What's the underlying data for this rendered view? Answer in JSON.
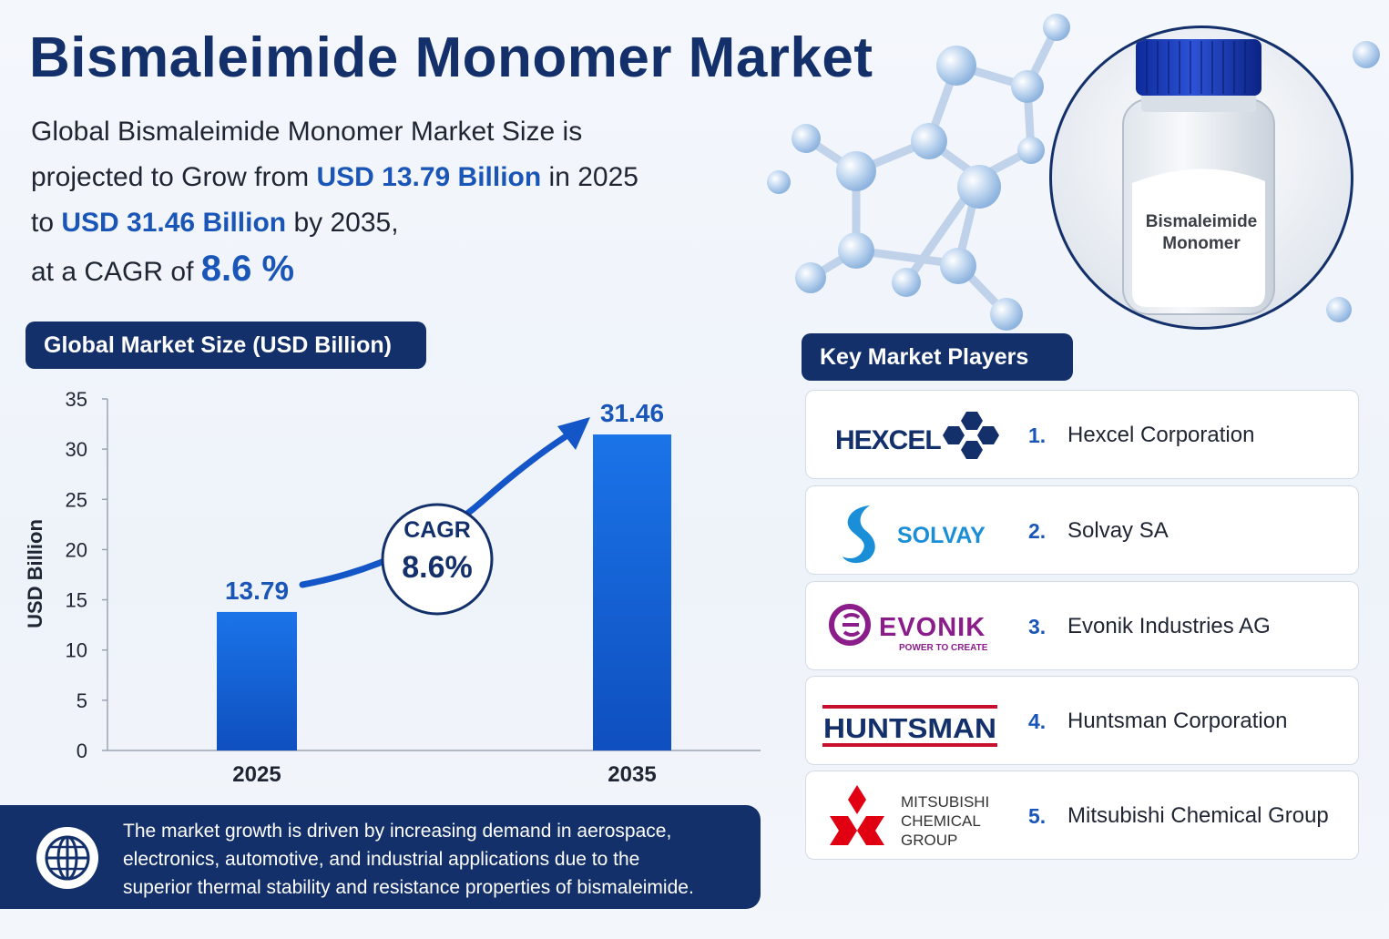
{
  "header": {
    "title": "Bismaleimide Monomer Market",
    "line1": "Global Bismaleimide Monomer Market Size is",
    "line2_pre": "projected to Grow from ",
    "line2_hl": "USD 13.79 Billion",
    "line2_post": " in 2025",
    "line3_pre": "to ",
    "line3_hl": "USD 31.46 Billion",
    "line3_post": " by 2035,",
    "line4_pre": "at a CAGR of ",
    "line4_hl": "8.6 %"
  },
  "product": {
    "label_line1": "Bismaleimide",
    "label_line2": "Monomer"
  },
  "market_pill": "Global Market Size (USD Billion)",
  "players_pill": "Key Market Players",
  "chart_data": {
    "type": "bar",
    "categories": [
      "2025",
      "2035"
    ],
    "values": [
      13.79,
      31.46
    ],
    "data_labels": [
      "13.79",
      "31.46"
    ],
    "ylabel": "USD Billion",
    "ylim": [
      0,
      35
    ],
    "yticks": [
      0,
      5,
      10,
      15,
      20,
      25,
      30,
      35
    ],
    "annotation": {
      "line1": "CAGR",
      "line2": "8.6%"
    },
    "bar_color": "#1565d8",
    "grid": false
  },
  "footer": {
    "line1": "The market growth is driven by increasing demand in aerospace,",
    "line2": "electronics, automotive, and industrial applications due to the",
    "line3": "superior thermal stability and resistance properties of bismaleimide."
  },
  "players": [
    {
      "num": "1.",
      "name": "Hexcel Corporation",
      "logo_text": "HEXCEL",
      "logo_color": "#13306b"
    },
    {
      "num": "2.",
      "name": "Solvay SA",
      "logo_text": "SOLVAY",
      "logo_color": "#1a8fd8"
    },
    {
      "num": "3.",
      "name": "Evonik Industries AG",
      "logo_text": "EVONIK",
      "logo_tagline": "POWER TO CREATE",
      "logo_color": "#8b1d8b"
    },
    {
      "num": "4.",
      "name": "Huntsman Corporation",
      "logo_text": "HUNTSMAN",
      "logo_color": "#13306b"
    },
    {
      "num": "5.",
      "name": "Mitsubishi Chemical Group",
      "logo_line1": "MITSUBISHI",
      "logo_line2": "CHEMICAL",
      "logo_line3": "GROUP",
      "logo_color": "#e00012"
    }
  ]
}
